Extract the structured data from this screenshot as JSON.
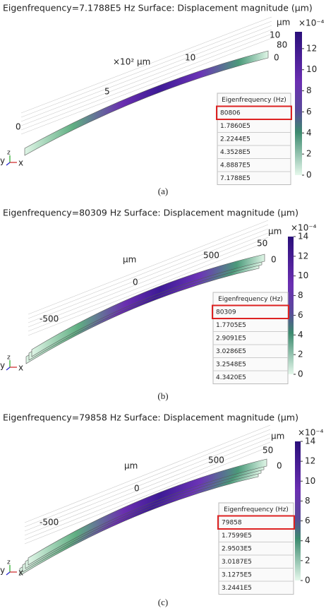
{
  "panels": [
    {
      "title": "Eigenfrequency=7.1788E5 Hz  Surface: Displacement magnitude (µm)",
      "axis_labels": [
        "×10² µm",
        "0",
        "5",
        "10",
        "10",
        "80",
        "0"
      ],
      "unit": "µm",
      "exponent": "×10⁻⁴",
      "colorbar_ticks": [
        12,
        10,
        8,
        6,
        4,
        2,
        0
      ],
      "triad": [
        "y",
        "z",
        "x"
      ],
      "table": {
        "header": "Eigenfrequency (Hz)",
        "rows": [
          "80806",
          "1.7860E5",
          "2.2244E5",
          "4.3528E5",
          "4.8887E5",
          "7.1788E5"
        ]
      },
      "caption": "(a)"
    },
    {
      "title": "Eigenfrequency=80309 Hz  Surface: Displacement magnitude (µm)",
      "axis_labels": [
        "µm",
        "0",
        "500",
        "-500",
        "50",
        "0"
      ],
      "unit": "µm",
      "exponent": "×10⁻⁴",
      "colorbar_ticks": [
        14,
        12,
        10,
        8,
        6,
        4,
        2,
        0
      ],
      "triad": [
        "y",
        "z",
        "x"
      ],
      "table": {
        "header": "Eigenfrequency (Hz)",
        "rows": [
          "80309",
          "1.7705E5",
          "2.9091E5",
          "3.0286E5",
          "3.2548E5",
          "4.3420E5"
        ]
      },
      "caption": "(b)"
    },
    {
      "title": "Eigenfrequency=79858 Hz  Surface: Displacement magnitude (µm)",
      "axis_labels": [
        "µm",
        "0",
        "500",
        "-500",
        "50",
        "0"
      ],
      "unit": "µm",
      "exponent": "×10⁻⁴",
      "colorbar_ticks": [
        14,
        12,
        10,
        8,
        6,
        4,
        2,
        0
      ],
      "triad": [
        "y",
        "z",
        "x"
      ],
      "table": {
        "header": "Eigenfrequency (Hz)",
        "rows": [
          "79858",
          "1.7599E5",
          "2.9503E5",
          "3.0187E5",
          "3.1275E5",
          "3.2441E5"
        ]
      },
      "caption": "(c)"
    }
  ]
}
